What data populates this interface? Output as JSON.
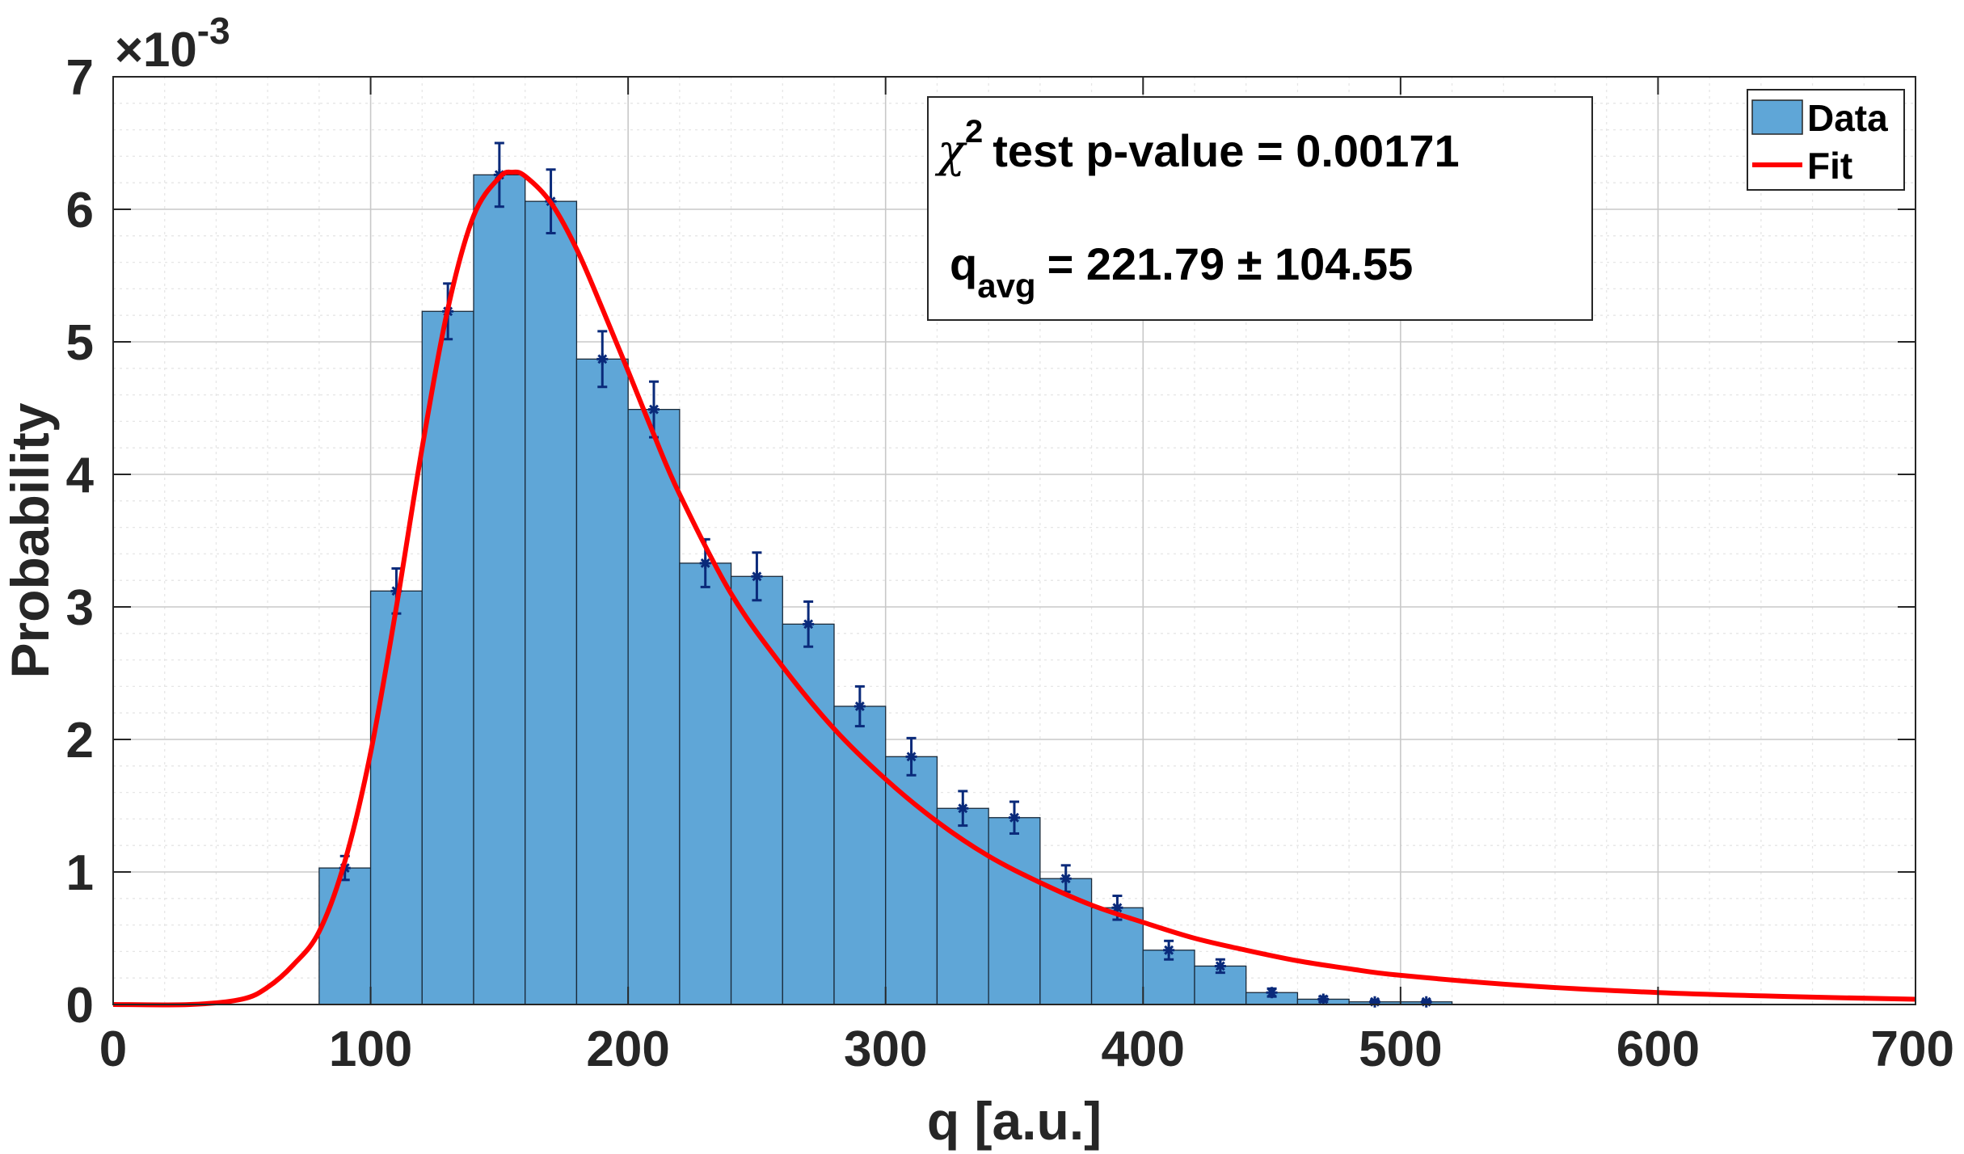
{
  "chart_data": {
    "type": "bar",
    "subtype": "histogram with fitted curve and error bars",
    "xlabel": "q [a.u.]",
    "ylabel": "Probability",
    "y_exponent_label": "×10",
    "y_exponent_power": "-3",
    "xlim": [
      0,
      700
    ],
    "ylim": [
      0,
      7
    ],
    "y_scale_factor": 0.001,
    "xticks": [
      0,
      100,
      200,
      300,
      400,
      500,
      600,
      700
    ],
    "xtick_labels": [
      "0",
      "100",
      "200",
      "300",
      "400",
      "500",
      "600",
      "700"
    ],
    "yticks": [
      0,
      1,
      2,
      3,
      4,
      5,
      6,
      7
    ],
    "ytick_labels": [
      "0",
      "1",
      "2",
      "3",
      "4",
      "5",
      "6",
      "7"
    ],
    "grid": true,
    "minor_grid": true,
    "bin_width": 20,
    "series": [
      {
        "name": "Data",
        "kind": "histogram",
        "color": "#5fa6d7",
        "bin_centers": [
          90,
          110,
          130,
          150,
          170,
          190,
          210,
          230,
          250,
          270,
          290,
          310,
          330,
          350,
          370,
          390,
          410,
          430,
          450,
          470,
          490,
          510
        ],
        "values": [
          1.03,
          3.12,
          5.23,
          6.26,
          6.06,
          4.87,
          4.49,
          3.33,
          3.23,
          2.87,
          2.25,
          1.87,
          1.48,
          1.41,
          0.95,
          0.73,
          0.41,
          0.29,
          0.09,
          0.04,
          0.02,
          0.02
        ],
        "errors": [
          0.09,
          0.17,
          0.21,
          0.24,
          0.24,
          0.21,
          0.21,
          0.18,
          0.18,
          0.17,
          0.15,
          0.14,
          0.13,
          0.12,
          0.1,
          0.09,
          0.07,
          0.05,
          0.03,
          0.02,
          0.01,
          0.01
        ]
      },
      {
        "name": "Fit",
        "kind": "line",
        "color": "#ff0000",
        "x": [
          0,
          30,
          50,
          60,
          70,
          80,
          90,
          100,
          110,
          120,
          130,
          140,
          150,
          155,
          160,
          170,
          180,
          190,
          200,
          210,
          220,
          240,
          260,
          280,
          300,
          320,
          340,
          360,
          380,
          400,
          420,
          440,
          460,
          480,
          500,
          550,
          600,
          650,
          700
        ],
        "values": [
          0,
          0.0,
          0.04,
          0.13,
          0.3,
          0.55,
          1.08,
          1.9,
          3.0,
          4.2,
          5.25,
          5.95,
          6.24,
          6.28,
          6.25,
          6.05,
          5.7,
          5.25,
          4.78,
          4.3,
          3.85,
          3.1,
          2.55,
          2.08,
          1.7,
          1.38,
          1.12,
          0.92,
          0.75,
          0.62,
          0.5,
          0.41,
          0.33,
          0.27,
          0.22,
          0.14,
          0.09,
          0.06,
          0.04
        ]
      }
    ],
    "legend": {
      "position": "top-right",
      "entries": [
        "Data",
        "Fit"
      ]
    },
    "annotation": {
      "position": "top-center",
      "line1_symbol": "χ",
      "line1_sup": "2",
      "line1_text": "test p-value = 0.00171",
      "line2_main": "q",
      "line2_sub": "avg",
      "line2_text": "= 221.79 ± 104.55"
    }
  }
}
